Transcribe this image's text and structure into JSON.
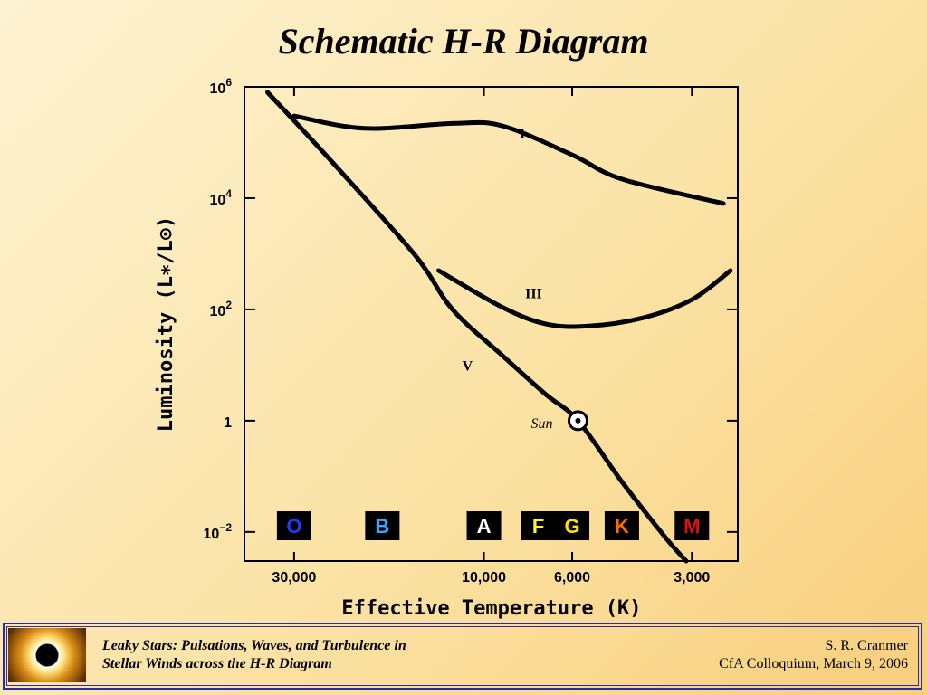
{
  "slide": {
    "title": "Schematic H-R Diagram"
  },
  "chart_data": {
    "type": "line",
    "xlabel": "Effective Temperature  (K)",
    "ylabel": "Luminosity  (L∗/L⊙)",
    "x_scale": "log-reversed",
    "y_scale": "log",
    "xlim": [
      40000,
      2300
    ],
    "ylim": [
      0.003,
      1000000
    ],
    "grid": false,
    "x_ticks": [
      {
        "value": 30000,
        "label": "30,000"
      },
      {
        "value": 10000,
        "label": "10,000"
      },
      {
        "value": 6000,
        "label": "6,000"
      },
      {
        "value": 3000,
        "label": "3,000"
      }
    ],
    "y_ticks": [
      {
        "value": 1000000,
        "base": "10",
        "exp": "6"
      },
      {
        "value": 10000,
        "base": "10",
        "exp": "4"
      },
      {
        "value": 100,
        "base": "10",
        "exp": "2"
      },
      {
        "value": 1,
        "base": "1",
        "exp": ""
      },
      {
        "value": 0.01,
        "base": "10",
        "exp": "−2"
      }
    ],
    "series": [
      {
        "name": "I",
        "points": [
          [
            30000,
            300000
          ],
          [
            20000,
            180000
          ],
          [
            12000,
            220000
          ],
          [
            9000,
            200000
          ],
          [
            6000,
            60000
          ],
          [
            4500,
            22000
          ],
          [
            2500,
            8000
          ]
        ]
      },
      {
        "name": "III",
        "points": [
          [
            13000,
            500
          ],
          [
            9000,
            110
          ],
          [
            7000,
            55
          ],
          [
            5500,
            50
          ],
          [
            4000,
            70
          ],
          [
            3000,
            150
          ],
          [
            2400,
            500
          ]
        ]
      },
      {
        "name": "V",
        "points": [
          [
            35000,
            800000
          ],
          [
            25000,
            60000
          ],
          [
            15000,
            1000
          ],
          [
            12000,
            100
          ],
          [
            9000,
            15
          ],
          [
            7000,
            3
          ],
          [
            5800,
            1
          ],
          [
            4500,
            0.08
          ],
          [
            3500,
            0.008
          ],
          [
            3100,
            0.003
          ]
        ]
      }
    ],
    "annotations": [
      {
        "name": "sun",
        "label": "Sun",
        "x": 5800,
        "y": 1
      }
    ],
    "spectral_classes": [
      {
        "label": "O",
        "x": 30000,
        "bg": "#000000",
        "color": "#1a3dff"
      },
      {
        "label": "B",
        "x": 18000,
        "bg": "#000000",
        "color": "#35a8ff"
      },
      {
        "label": "A",
        "x": 10000,
        "bg": "#000000",
        "color": "#ffffff"
      },
      {
        "label": "F",
        "x": 7300,
        "bg": "#000000",
        "color": "#fff23a"
      },
      {
        "label": "G",
        "x": 6000,
        "bg": "#000000",
        "color": "#ffe000"
      },
      {
        "label": "K",
        "x": 4500,
        "bg": "#000000",
        "color": "#ff6a00"
      },
      {
        "label": "M",
        "x": 3000,
        "bg": "#000000",
        "color": "#e01010"
      }
    ]
  },
  "footer": {
    "left_line1": "Leaky Stars:  Pulsations, Waves, and Turbulence in",
    "left_line2": "Stellar Winds across the H-R Diagram",
    "right_line1": "S. R. Cranmer",
    "right_line2": "CfA Colloquium,  March 9, 2006"
  }
}
